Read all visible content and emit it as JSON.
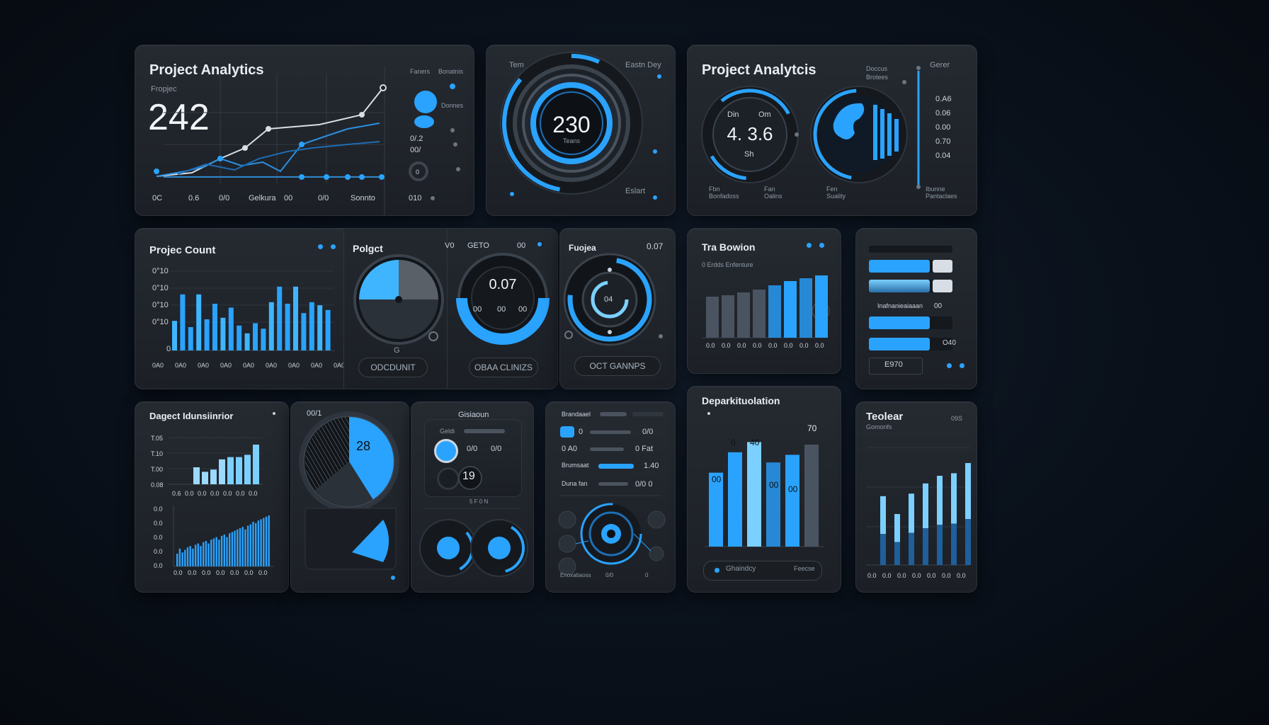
{
  "colors": {
    "accent": "#2aa3ff",
    "accent_light": "#7cd0ff",
    "panel": "#22272d",
    "grid": "#3a424c"
  },
  "panel_analytics": {
    "title": "Project Analytics",
    "label": "Fropjec",
    "value": "242",
    "x_labels": [
      "0C",
      "0.6",
      "0/0",
      "Gelkura",
      "00",
      "0/0",
      "Sonnto"
    ],
    "side_labels": [
      "Faners",
      "Bonatnis",
      "Donnes",
      "0/.2",
      "00/",
      "0",
      "010"
    ]
  },
  "panel_gauge": {
    "center_value": "230",
    "center_sub": "Teans",
    "label_tl": "Tem",
    "label_tr": "Eastn Dey",
    "label_br": "Eslart"
  },
  "panel_analytics2": {
    "title": "Project Analytcis",
    "gauge_value": "4. 3.6",
    "gauge_labels": [
      "Din",
      "Om",
      "Sh"
    ],
    "labels_top": [
      "Doccus",
      "Brotees",
      "Gerer"
    ],
    "list_values": [
      "0.A6",
      "0.06",
      "0.00",
      "0.70",
      "0.04"
    ],
    "bottom_labels": [
      "Fbn Bonfadoss",
      "Fan Oalins",
      "Fen Suality",
      "Ibunne Pantaclaes"
    ]
  },
  "panel_count": {
    "title": "Projec Count",
    "y_labels": [
      "0°10",
      "0°10",
      "0°10",
      "0°10",
      "0"
    ],
    "x_labels": [
      "0A0",
      "0A0",
      "0A0",
      "0A0",
      "0A0",
      "0A0",
      "0A0",
      "0A0",
      "0A0",
      "0A0",
      "0A0"
    ],
    "chart_data": {
      "type": "bar",
      "values": [
        38,
        72,
        30,
        72,
        40,
        60,
        42,
        55,
        32,
        22,
        35,
        28,
        62,
        82,
        60,
        82,
        48,
        62,
        58,
        52
      ]
    }
  },
  "panel_pie": {
    "title": "Polgct",
    "button": "ODCDUNIT",
    "label": "G"
  },
  "panel_donut_small": {
    "value": "0.07",
    "labels_top": [
      "V0",
      "GETO",
      "00"
    ],
    "button": "OBAA CLINIZS",
    "inner": [
      "00",
      "00",
      "00"
    ]
  },
  "panel_target": {
    "title": "Fuojea",
    "value": "0.07",
    "inner": "04",
    "button": "OCT GANNPS"
  },
  "panel_tea": {
    "title": "Tra Bowion",
    "subtitle": "0 Erdds Enfenture",
    "x_labels": [
      "0.0",
      "0.0",
      "0.0",
      "0.0",
      "0.0",
      "0.0",
      "0.0",
      "0.0"
    ],
    "chart_data": {
      "type": "bar",
      "values": [
        58,
        60,
        64,
        68,
        74,
        80,
        84,
        88
      ]
    }
  },
  "panel_bars_right": {
    "label": "Inafnanieaiaaan",
    "value1": "00",
    "value2": "O40",
    "footer": "E970",
    "bars": [
      {
        "value": 0.72
      },
      {
        "value": 0.72
      },
      {
        "value": 0.72
      },
      {
        "value": 0.72
      }
    ]
  },
  "panel_distribution": {
    "title": "Dagect Idunsiinrior",
    "y_labels_top": [
      "T.05",
      "T.10",
      "T.00",
      "0.08"
    ],
    "x_labels_top": [
      "0.6",
      "0.0",
      "0.0",
      "0.0",
      "0.0",
      "0.0",
      "0.0"
    ],
    "y_labels_bottom": [
      "0.0",
      "0.0",
      "0.0",
      "0.0",
      "0.0"
    ],
    "x_labels_bottom": [
      "0.0",
      "0.0",
      "0.0",
      "0.0",
      "0.0",
      "0.0",
      "0.0"
    ],
    "chart_data": [
      {
        "type": "bar",
        "values": [
          30,
          22,
          26,
          44,
          48,
          48,
          52,
          70
        ]
      },
      {
        "type": "bar",
        "values": [
          20,
          28,
          22,
          26,
          30,
          32,
          28,
          34,
          36,
          32,
          38,
          40,
          36,
          42,
          44,
          46,
          42,
          48,
          50,
          46,
          52,
          54,
          56,
          58,
          60,
          62,
          58,
          64,
          66,
          70,
          68,
          72,
          74,
          76,
          78,
          80
        ]
      }
    ]
  },
  "panel_pie2": {
    "label": "00/1",
    "value": "28"
  },
  "panel_controls": {
    "title": "Gisiaoun",
    "label": "Geldi",
    "value": "19",
    "label2": "0/0",
    "label3": "0/0",
    "sub": "5 F 0 N"
  },
  "panel_sliders": {
    "title": "Brandaael",
    "rows": [
      "0",
      "0 A0",
      "Brumsaat",
      "Duna fan"
    ],
    "values": [
      "0/0",
      "0 Fat",
      "1.40",
      "0/0 0"
    ],
    "bottom": [
      "Enoxatiaoss",
      "0/0",
      "0"
    ]
  },
  "panel_department": {
    "title": "Deparkituolation",
    "bar_labels": [
      "00",
      "0",
      "40",
      "00",
      "00",
      "70"
    ],
    "footer": "Ghaindcy",
    "footer_right": "Feecse",
    "chart_data": {
      "type": "bar",
      "values": [
        58,
        74,
        82,
        66,
        72,
        80
      ]
    }
  },
  "panel_teolaar": {
    "title": "Teolear",
    "subtitle": "Gomonfs",
    "tag": "09S",
    "x_labels": [
      "0.0",
      "0.0",
      "0.0",
      "0.0",
      "0.0",
      "0.0",
      "0.0"
    ],
    "chart_data": {
      "type": "bar",
      "values": [
        54,
        40,
        56,
        64,
        70,
        72,
        80
      ]
    }
  }
}
